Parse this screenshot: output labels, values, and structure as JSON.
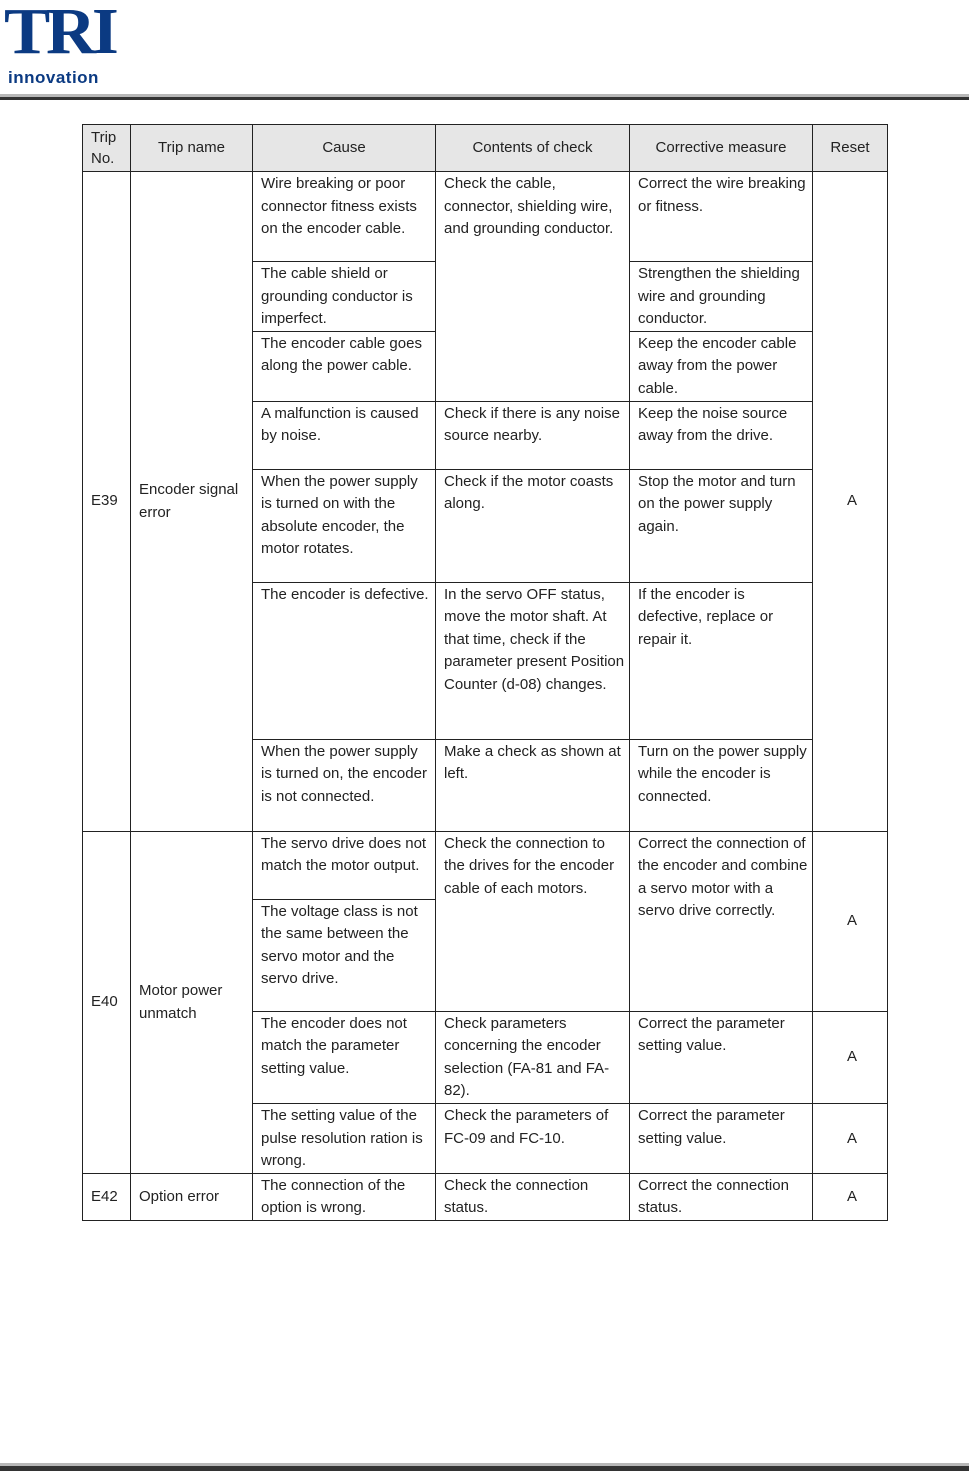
{
  "logo": {
    "text": "TRI",
    "subtext": "innovation"
  },
  "table": {
    "headers": [
      "Trip No.",
      "Trip name",
      "Cause",
      "Contents of check",
      "Corrective measure",
      "Reset"
    ],
    "e39": {
      "trip_no": "E39",
      "trip_name": "Encoder signal error",
      "reset": "A",
      "causes": [
        "Wire breaking or poor connector fitness exists on the encoder cable.",
        "The cable shield or grounding conductor is imperfect.",
        "The encoder cable goes along the power cable.",
        "A malfunction is caused by noise.",
        "When the power supply is turned on with the absolute encoder, the motor rotates.",
        "The encoder is defective.",
        "When the power supply is turned on, the encoder is not connected."
      ],
      "checks": [
        "Check the cable, connector, shielding wire, and grounding conductor.",
        "Check if there is any noise source nearby.",
        "Check if the motor coasts along.",
        "In the servo OFF status, move the motor shaft.  At that time, check if the parameter present Position Counter (d-08) changes.",
        "Make a check as shown at left."
      ],
      "measures": [
        "Correct the wire breaking or fitness.",
        "Strengthen the shielding wire and grounding conductor.",
        "Keep the encoder cable away from the power cable.",
        "Keep the noise source away from the drive.",
        "Stop the motor and turn on the power supply again.",
        "If the encoder is defective, replace or repair it.",
        "Turn on the power supply while the encoder is connected."
      ]
    },
    "e40": {
      "trip_no": "E40",
      "trip_name": "Motor power unmatch",
      "causes": [
        "The servo drive does not match the motor output.",
        "The voltage class is not the same between the servo motor and the servo drive.",
        "The encoder does not match the parameter setting value.",
        "The setting value of the pulse resolution ration is wrong."
      ],
      "checks": [
        "Check the connection to the drives for the encoder cable of each motors.",
        "Check parameters concerning the encoder selection (FA-81 and FA-82).",
        "Check the parameters of FC-09 and FC-10."
      ],
      "measures": [
        "Correct the connection of the encoder and combine a servo motor with a servo drive correctly.",
        "Correct the parameter setting value.",
        "Correct the parameter setting value."
      ],
      "resets": [
        "A",
        "A",
        "A"
      ]
    },
    "e42": {
      "trip_no": "E42",
      "trip_name": "Option error",
      "cause": "The connection of the option is wrong.",
      "check": "Check the connection status.",
      "measure": "Correct the connection status.",
      "reset": "A"
    }
  }
}
